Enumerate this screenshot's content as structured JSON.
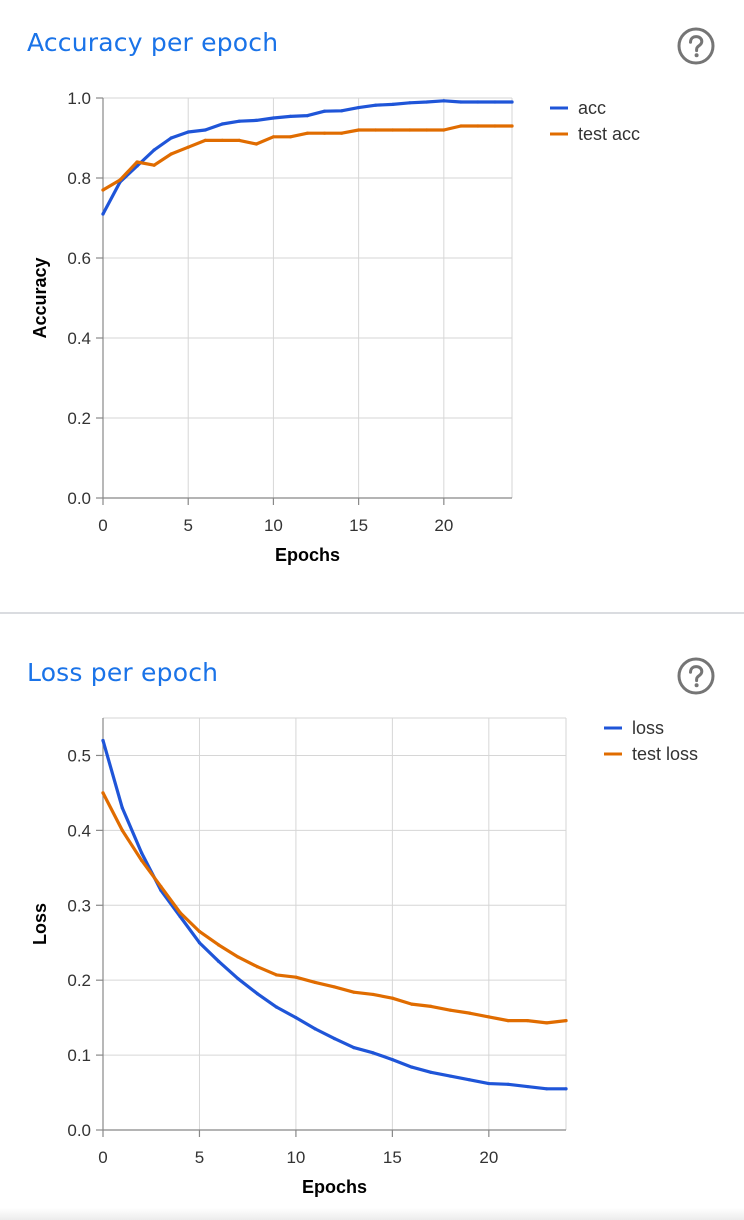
{
  "accuracy_card": {
    "title": "Accuracy per epoch",
    "help_icon": "help-circle-icon"
  },
  "loss_card": {
    "title": "Loss per epoch",
    "help_icon": "help-circle-icon"
  },
  "colors": {
    "title_blue": "#1a73e8",
    "series_blue": "#1f55d8",
    "series_orange": "#e06c00",
    "grid": "#d6d6d6",
    "help_icon": "#757575"
  },
  "chart_data": [
    {
      "type": "line",
      "title": "Accuracy per epoch",
      "xlabel": "Epochs",
      "ylabel": "Accuracy",
      "xlim": [
        0,
        24
      ],
      "ylim": [
        0,
        1
      ],
      "x_ticks": [
        0,
        5,
        10,
        15,
        20
      ],
      "y_ticks": [
        "0.0",
        "0.2",
        "0.4",
        "0.6",
        "0.8",
        "1.0"
      ],
      "grid": true,
      "legend_position": "right",
      "x": [
        0,
        1,
        2,
        3,
        4,
        5,
        6,
        7,
        8,
        9,
        10,
        11,
        12,
        13,
        14,
        15,
        16,
        17,
        18,
        19,
        20,
        21,
        22,
        23,
        24
      ],
      "series": [
        {
          "name": "acc",
          "color": "#1f55d8",
          "values": [
            0.71,
            0.79,
            0.83,
            0.87,
            0.9,
            0.915,
            0.92,
            0.935,
            0.942,
            0.944,
            0.95,
            0.954,
            0.956,
            0.967,
            0.968,
            0.976,
            0.982,
            0.984,
            0.988,
            0.99,
            0.993,
            0.99,
            0.99,
            0.99,
            0.99
          ]
        },
        {
          "name": "test acc",
          "color": "#e06c00",
          "values": [
            0.77,
            0.795,
            0.84,
            0.832,
            0.86,
            0.877,
            0.894,
            0.894,
            0.894,
            0.885,
            0.903,
            0.903,
            0.912,
            0.912,
            0.912,
            0.92,
            0.92,
            0.92,
            0.92,
            0.92,
            0.92,
            0.93,
            0.93,
            0.93,
            0.93
          ]
        }
      ]
    },
    {
      "type": "line",
      "title": "Loss per epoch",
      "xlabel": "Epochs",
      "ylabel": "Loss",
      "xlim": [
        0,
        24
      ],
      "ylim": [
        0,
        0.55
      ],
      "x_ticks": [
        0,
        5,
        10,
        15,
        20
      ],
      "y_ticks": [
        "0.0",
        "0.1",
        "0.2",
        "0.3",
        "0.4",
        "0.5"
      ],
      "grid": true,
      "legend_position": "right",
      "x": [
        0,
        1,
        2,
        3,
        4,
        5,
        6,
        7,
        8,
        9,
        10,
        11,
        12,
        13,
        14,
        15,
        16,
        17,
        18,
        19,
        20,
        21,
        22,
        23,
        24
      ],
      "series": [
        {
          "name": "loss",
          "color": "#1f55d8",
          "values": [
            0.52,
            0.43,
            0.37,
            0.32,
            0.285,
            0.25,
            0.225,
            0.202,
            0.182,
            0.164,
            0.15,
            0.135,
            0.122,
            0.11,
            0.103,
            0.094,
            0.084,
            0.077,
            0.072,
            0.067,
            0.062,
            0.061,
            0.058,
            0.055,
            0.055
          ]
        },
        {
          "name": "test loss",
          "color": "#e06c00",
          "values": [
            0.45,
            0.4,
            0.36,
            0.325,
            0.29,
            0.265,
            0.247,
            0.231,
            0.218,
            0.207,
            0.204,
            0.197,
            0.191,
            0.184,
            0.181,
            0.176,
            0.168,
            0.165,
            0.16,
            0.156,
            0.151,
            0.146,
            0.146,
            0.143,
            0.146
          ]
        }
      ]
    }
  ]
}
